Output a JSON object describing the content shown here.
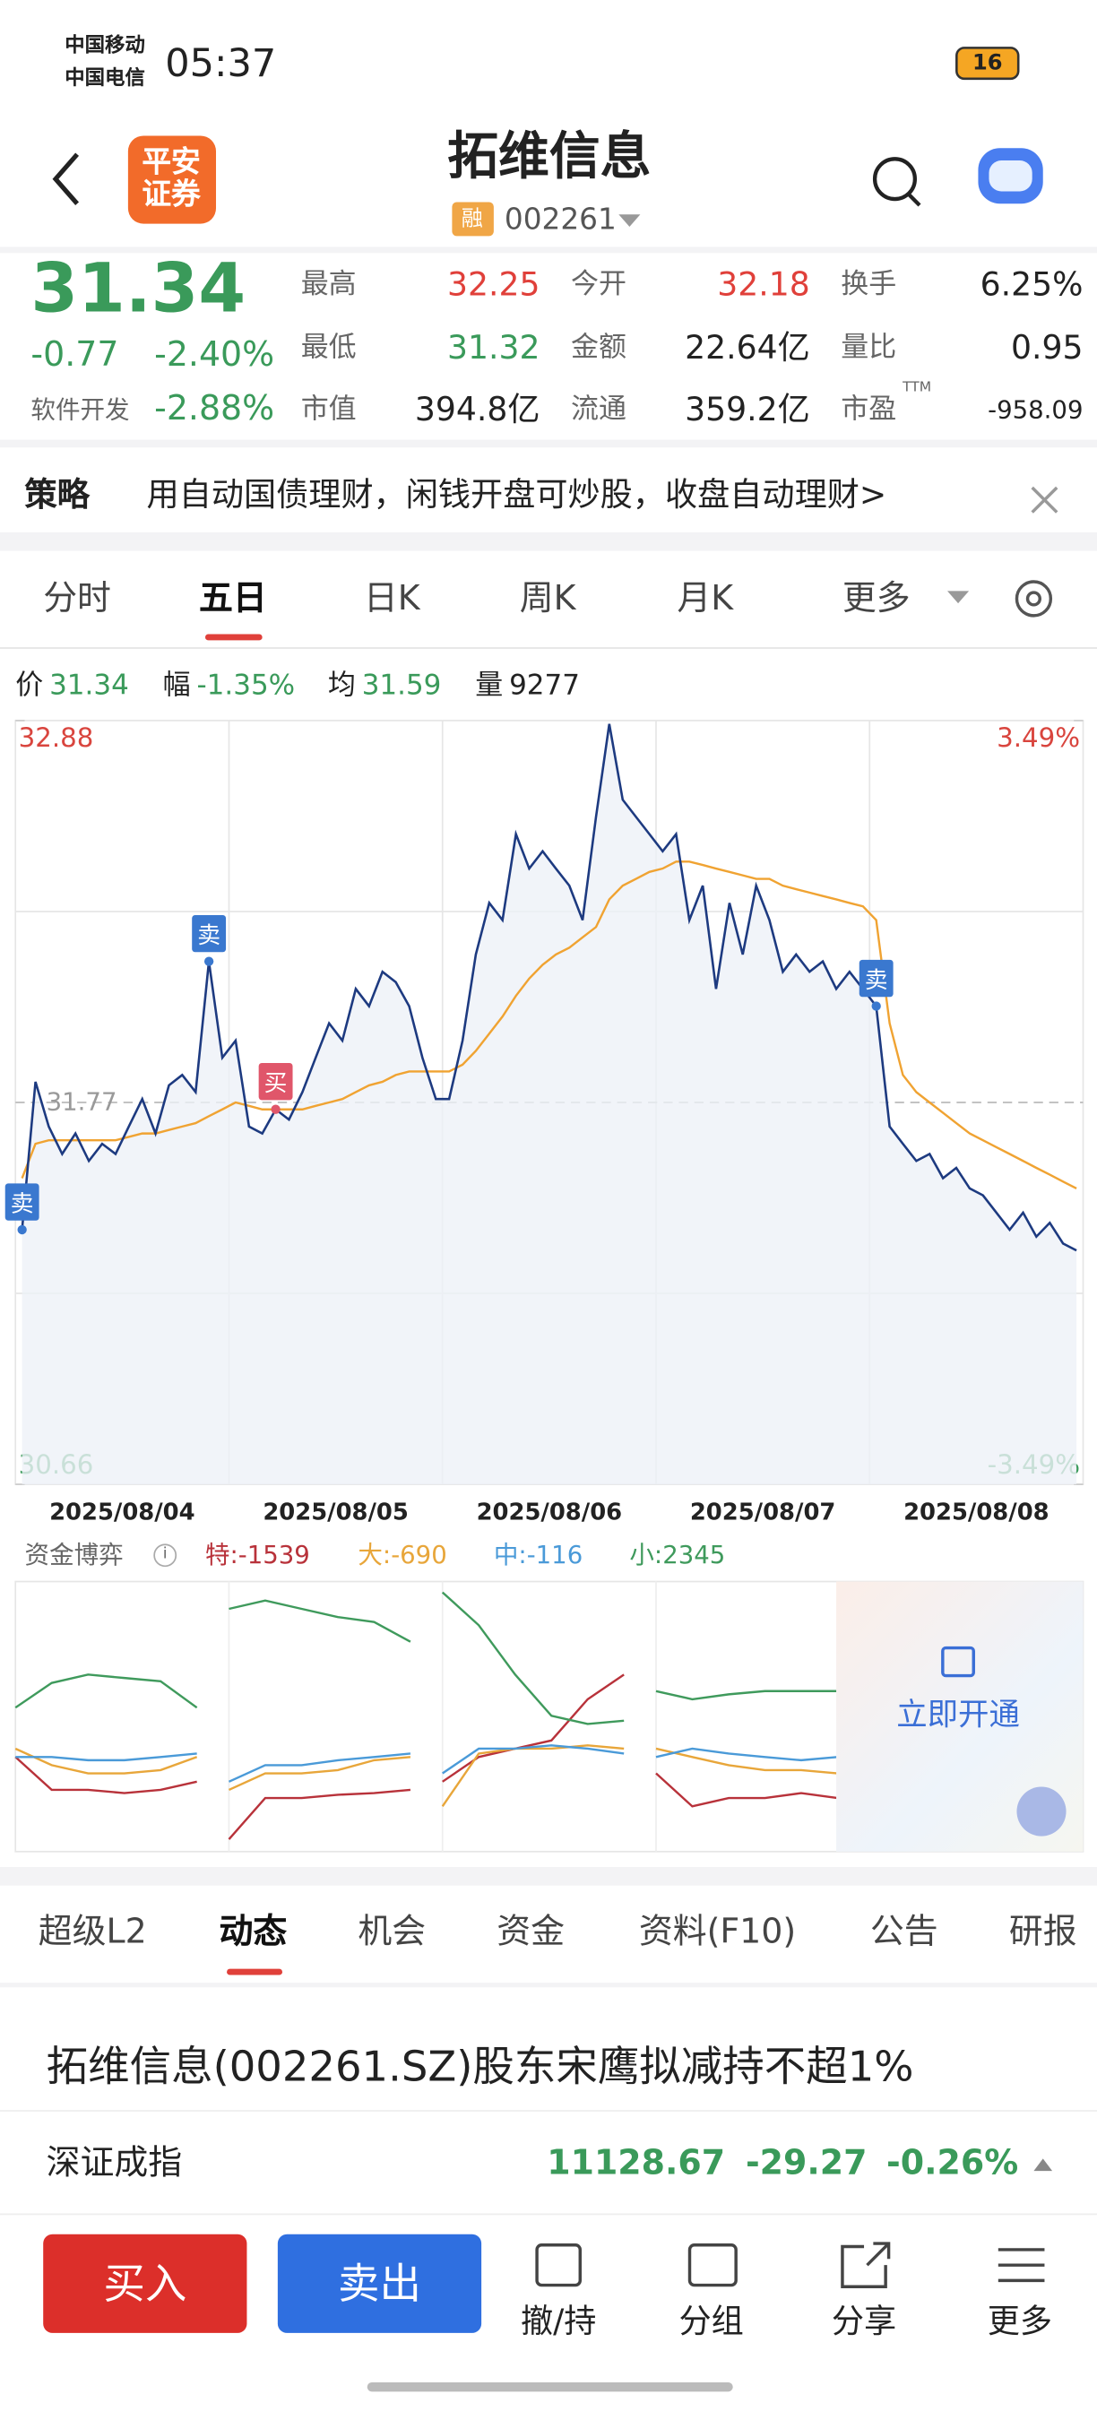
{
  "status": {
    "carrier_1": "中国移动",
    "carrier_2": "中国电信",
    "time": "05:37",
    "battery": "16"
  },
  "header": {
    "logo": "平安证券",
    "title": "拓维信息",
    "badge": "融",
    "code": "002261"
  },
  "quote": {
    "price": "31.34",
    "change": "-0.77",
    "change_pct": "-2.40%",
    "sector": "软件开发",
    "sector_pct": "-2.88%",
    "stats": [
      {
        "label": "最高",
        "value": "32.25"
      },
      {
        "label": "今开",
        "value": "32.18"
      },
      {
        "label": "换手",
        "value": "6.25%"
      },
      {
        "label": "最低",
        "value": "31.32"
      },
      {
        "label": "金额",
        "value": "22.64亿"
      },
      {
        "label": "量比",
        "value": "0.95"
      },
      {
        "label": "市值",
        "value": "394.8亿"
      },
      {
        "label": "流通",
        "value": "359.2亿"
      },
      {
        "label": "市盈",
        "value": "-958.09"
      }
    ],
    "pe_note": "TTM"
  },
  "strategy": {
    "label": "策略",
    "text": "用自动国债理财，闲钱开盘可炒股，收盘自动理财>"
  },
  "tabs": {
    "items": [
      "分时",
      "五日",
      "日K",
      "周K",
      "月K",
      "更多"
    ],
    "active": 1
  },
  "info": [
    {
      "label": "价",
      "value": "31.34"
    },
    {
      "label": "幅",
      "value": "-1.35%"
    },
    {
      "label": "均",
      "value": "31.59"
    },
    {
      "label": "量",
      "value": "9277"
    }
  ],
  "chart_data": [
    {
      "type": "line",
      "categories": [
        "2025/08/04",
        "2025/08/05",
        "2025/08/06",
        "2025/08/07",
        "2025/08/08"
      ],
      "ylim": [
        30.66,
        32.88
      ],
      "yticks": [
        30.66,
        32.88
      ],
      "y2lim": [
        -3.49,
        3.49
      ],
      "y2ticks": [
        {
          "value": 3.49,
          "label": "3.49%"
        },
        {
          "value": -3.49,
          "label": "-3.49%"
        }
      ],
      "reference": 31.77,
      "price_color": "#1d3a80",
      "average_color": "#f0a332",
      "days": [
        {
          "price": [
            31.4,
            31.83,
            31.7,
            31.62,
            31.68,
            31.6,
            31.65,
            31.62,
            31.7,
            31.78,
            31.68,
            31.82,
            31.85,
            31.8,
            32.18,
            31.9
          ],
          "average": [
            31.55,
            31.65,
            31.66,
            31.66,
            31.66,
            31.66,
            31.66,
            31.66,
            31.67,
            31.68,
            31.68,
            31.69,
            31.7,
            31.71,
            31.73,
            31.75
          ]
        },
        {
          "price": [
            31.95,
            31.7,
            31.68,
            31.75,
            31.72,
            31.8,
            31.9,
            32.0,
            31.95,
            32.1,
            32.05,
            32.15,
            32.12,
            32.05,
            31.9,
            31.78
          ],
          "average": [
            31.77,
            31.76,
            31.75,
            31.75,
            31.75,
            31.75,
            31.76,
            31.77,
            31.78,
            31.8,
            31.82,
            31.83,
            31.85,
            31.86,
            31.86,
            31.86
          ]
        },
        {
          "price": [
            31.78,
            31.95,
            32.2,
            32.35,
            32.3,
            32.55,
            32.45,
            32.5,
            32.45,
            32.4,
            32.3,
            32.6,
            32.87,
            32.65,
            32.6,
            32.55
          ],
          "average": [
            31.86,
            31.88,
            31.92,
            31.97,
            32.02,
            32.08,
            32.13,
            32.17,
            32.2,
            32.22,
            32.25,
            32.28,
            32.36,
            32.4,
            32.42,
            32.44
          ]
        },
        {
          "price": [
            32.5,
            32.55,
            32.3,
            32.4,
            32.1,
            32.35,
            32.2,
            32.4,
            32.3,
            32.15,
            32.2,
            32.15,
            32.18,
            32.1,
            32.15,
            32.1
          ],
          "average": [
            32.45,
            32.47,
            32.47,
            32.46,
            32.45,
            32.44,
            32.43,
            32.42,
            32.42,
            32.4,
            32.39,
            32.38,
            32.37,
            32.36,
            32.35,
            32.34
          ]
        },
        {
          "price": [
            32.05,
            31.7,
            31.65,
            31.6,
            31.62,
            31.55,
            31.58,
            31.52,
            31.5,
            31.45,
            31.4,
            31.45,
            31.38,
            31.42,
            31.36,
            31.34
          ],
          "average": [
            32.3,
            32.0,
            31.85,
            31.8,
            31.77,
            31.74,
            31.71,
            31.68,
            31.66,
            31.64,
            31.62,
            31.6,
            31.58,
            31.56,
            31.54,
            31.52
          ]
        }
      ],
      "markers": [
        {
          "label": "卖",
          "day": 0,
          "index": 0,
          "color": "#3a78cf"
        },
        {
          "label": "卖",
          "day": 0,
          "index": 14,
          "color": "#3a78cf"
        },
        {
          "label": "买",
          "day": 1,
          "index": 3,
          "color": "#e0566a"
        },
        {
          "label": "卖",
          "day": 4,
          "index": 0,
          "color": "#3a78cf"
        }
      ]
    },
    {
      "type": "line",
      "title": "资金博弈",
      "lock_text": "立即开通",
      "series": [
        {
          "name": "特:-1539",
          "color": "#b8323a",
          "values": [
            -10,
            -30,
            -30,
            -32,
            -30,
            -25,
            null,
            -60,
            -35,
            -35,
            -33,
            -32,
            -30,
            null,
            -25,
            -10,
            -5,
            0,
            25,
            40,
            null,
            -20,
            -40,
            -35,
            -35,
            -32,
            -35
          ]
        },
        {
          "name": "大:-690",
          "color": "#e8a63a",
          "values": [
            -5,
            -15,
            -20,
            -20,
            -18,
            -10,
            null,
            -30,
            -20,
            -20,
            -18,
            -12,
            -10,
            null,
            -40,
            -8,
            -5,
            -5,
            -3,
            -5,
            null,
            -5,
            -10,
            -15,
            -18,
            -18,
            -20
          ]
        },
        {
          "name": "中:-116",
          "color": "#4a9ad8",
          "values": [
            -10,
            -10,
            -12,
            -12,
            -10,
            -8,
            null,
            -25,
            -15,
            -15,
            -12,
            -10,
            -8,
            null,
            -20,
            -5,
            -5,
            -3,
            -5,
            -8,
            null,
            -10,
            -5,
            -8,
            -10,
            -12,
            -10
          ]
        },
        {
          "name": "小:2345",
          "color": "#3f9a5c",
          "values": [
            20,
            35,
            40,
            38,
            36,
            20,
            null,
            80,
            85,
            80,
            75,
            72,
            60,
            null,
            90,
            70,
            40,
            15,
            10,
            12,
            null,
            30,
            25,
            28,
            30,
            30,
            30
          ]
        }
      ]
    }
  ],
  "detail_tabs": {
    "items": [
      "超级L2",
      "动态",
      "机会",
      "资金",
      "资料(F10)",
      "公告",
      "研报"
    ],
    "active": 1
  },
  "news": {
    "headline": "拓维信息(002261.SZ)股东宋鹰拟减持不超1%"
  },
  "index": {
    "name": "深证成指",
    "value": "11128.67",
    "change": "-29.27",
    "change_pct": "-0.26%"
  },
  "actions": {
    "buy": "买入",
    "sell": "卖出",
    "items": [
      "撤/持",
      "分组",
      "分享",
      "更多"
    ]
  }
}
